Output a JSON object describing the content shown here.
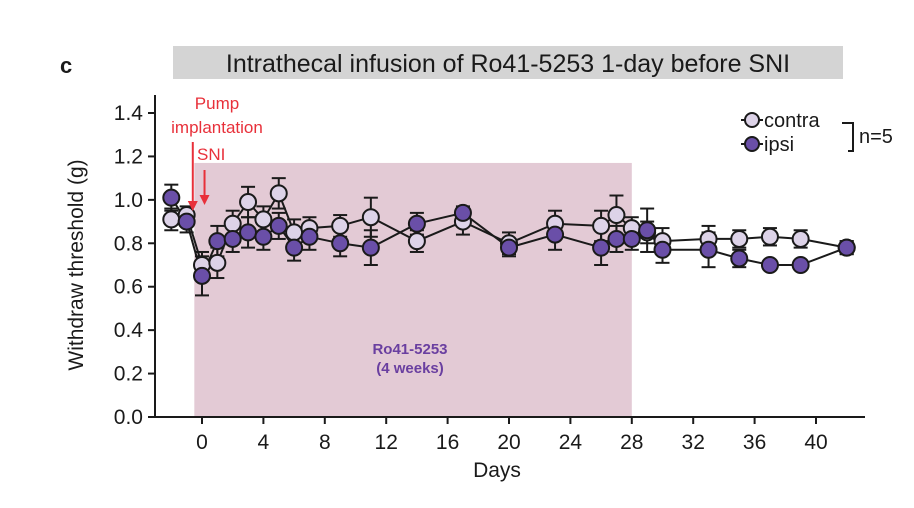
{
  "panel_letter": "c",
  "chart_data": {
    "type": "line",
    "title": "Intrathecal infusion of Ro41-5253 1-day before SNI",
    "xlabel": "Days",
    "ylabel": "Withdraw threshold (g)",
    "xlim": [
      -3,
      43
    ],
    "ylim": [
      0.0,
      1.5
    ],
    "xticks": [
      0,
      4,
      8,
      12,
      16,
      20,
      24,
      28,
      32,
      36,
      40
    ],
    "xtick_labels": [
      "0",
      "4",
      "8",
      "12",
      "16",
      "20",
      "24",
      "28",
      "32",
      "36",
      "40"
    ],
    "yticks": [
      0.0,
      0.2,
      0.4,
      0.6,
      0.8,
      1.0,
      1.2,
      1.4
    ],
    "ytick_labels": [
      "0.0",
      "0.2",
      "0.4",
      "0.6",
      "0.8",
      "1.0",
      "1.2",
      "1.4"
    ],
    "grid": false,
    "legend": {
      "placement": "top-right",
      "entries": [
        "contra",
        "ipsi"
      ],
      "bracket_label": "n=5"
    },
    "colors": {
      "contra": "#ddd3e8",
      "ipsi": "#6a4fa8",
      "shade": "#e3cad5",
      "annotation_red": "#e8303a",
      "annotation_purple": "#6a3fa0",
      "title_bg": "#d4d4d4"
    },
    "shaded_region": {
      "x_start": -0.5,
      "x_end": 28,
      "y_top": 1.17,
      "label_line1": "Ro41-5253",
      "label_line2": "(4 weeks)"
    },
    "annotations": [
      {
        "text_lines": [
          "Pump",
          "implantation"
        ],
        "arrow_x": -0.6,
        "color": "red"
      },
      {
        "text_lines": [
          "SNI"
        ],
        "arrow_x": 0.1,
        "color": "red"
      }
    ],
    "series": [
      {
        "name": "contra",
        "x": [
          -2,
          -1,
          0,
          1,
          2,
          3,
          4,
          5,
          6,
          7,
          9,
          11,
          14,
          17,
          20,
          23,
          26,
          27,
          28,
          29,
          30,
          33,
          35,
          37,
          39,
          42
        ],
        "values": [
          0.91,
          0.93,
          0.7,
          0.71,
          0.89,
          0.99,
          0.91,
          1.03,
          0.85,
          0.87,
          0.88,
          0.92,
          0.81,
          0.9,
          0.8,
          0.89,
          0.88,
          0.93,
          0.87,
          0.85,
          0.81,
          0.82,
          0.82,
          0.83,
          0.82,
          0.78
        ],
        "errors": [
          0.05,
          0.04,
          0.06,
          0.07,
          0.06,
          0.07,
          0.06,
          0.07,
          0.06,
          0.05,
          0.05,
          0.09,
          0.05,
          0.06,
          0.05,
          0.06,
          0.07,
          0.09,
          0.05,
          0.05,
          0.06,
          0.06,
          0.04,
          0.04,
          0.04,
          0.03
        ]
      },
      {
        "name": "ipsi",
        "x": [
          -2,
          -1,
          0,
          1,
          2,
          3,
          4,
          5,
          6,
          7,
          9,
          11,
          14,
          17,
          20,
          23,
          26,
          27,
          28,
          29,
          30,
          33,
          35,
          37,
          39,
          42
        ],
        "values": [
          1.01,
          0.9,
          0.65,
          0.81,
          0.82,
          0.85,
          0.83,
          0.88,
          0.78,
          0.83,
          0.8,
          0.78,
          0.89,
          0.94,
          0.78,
          0.84,
          0.78,
          0.82,
          0.82,
          0.86,
          0.77,
          0.77,
          0.73,
          0.7,
          0.7,
          0.78
        ],
        "errors": [
          0.06,
          0.05,
          0.09,
          0.07,
          0.06,
          0.07,
          0.06,
          0.06,
          0.06,
          0.06,
          0.06,
          0.08,
          0.05,
          0.03,
          0.04,
          0.07,
          0.08,
          0.06,
          0.05,
          0.1,
          0.06,
          0.08,
          0.04,
          0.02,
          0.02,
          0.03
        ]
      }
    ]
  }
}
